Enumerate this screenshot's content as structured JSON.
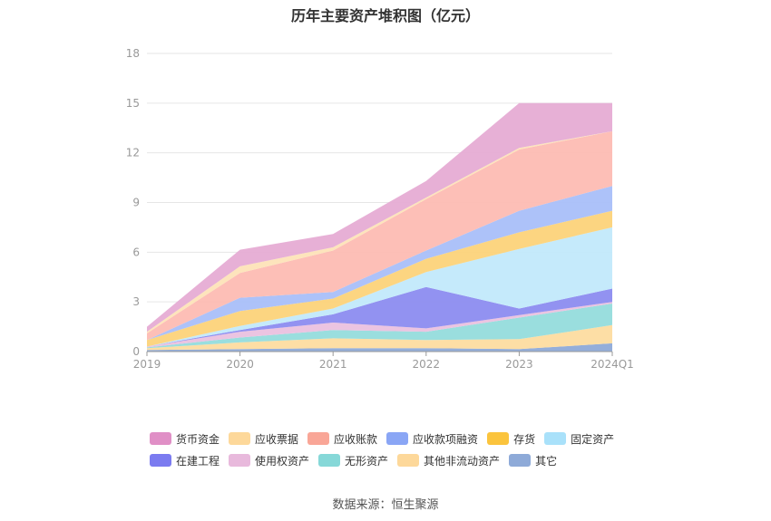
{
  "chart_data": {
    "type": "area",
    "stacked": true,
    "title": "历年主要资产堆积图（亿元）",
    "x": [
      "2019",
      "2020",
      "2021",
      "2022",
      "2023",
      "2024Q1"
    ],
    "ylim": [
      0,
      18
    ],
    "yticks": [
      0,
      3,
      6,
      9,
      12,
      15,
      18
    ],
    "grid": true,
    "legend_position": "bottom",
    "series": [
      {
        "name": "其它",
        "color": "#8eaad8",
        "values": [
          0.1,
          0.15,
          0.2,
          0.2,
          0.15,
          0.5
        ]
      },
      {
        "name": "其他非流动资产",
        "color": "#fddca0",
        "values": [
          0.1,
          0.4,
          0.6,
          0.5,
          0.6,
          1.1
        ]
      },
      {
        "name": "无形资产",
        "color": "#95dcdc",
        "values": [
          0.05,
          0.3,
          0.5,
          0.5,
          1.3,
          1.3
        ]
      },
      {
        "name": "使用权资产",
        "color": "#eac1df",
        "values": [
          0.05,
          0.35,
          0.45,
          0.2,
          0.15,
          0.1
        ]
      },
      {
        "name": "在建工程",
        "color": "#8c8cf0",
        "values": [
          0.0,
          0.1,
          0.5,
          2.5,
          0.4,
          0.8
        ]
      },
      {
        "name": "固定资产",
        "color": "#c2e9fb",
        "values": [
          0.0,
          0.25,
          0.35,
          0.9,
          3.6,
          3.7
        ]
      },
      {
        "name": "存货",
        "color": "#fcd37a",
        "values": [
          0.4,
          0.9,
          0.6,
          0.8,
          1.0,
          1.0
        ]
      },
      {
        "name": "应收款项融资",
        "color": "#a9bff9",
        "values": [
          0.0,
          0.8,
          0.4,
          0.5,
          1.3,
          1.5
        ]
      },
      {
        "name": "应收账款",
        "color": "#fdbcb3",
        "values": [
          0.4,
          1.5,
          2.5,
          3.1,
          3.7,
          3.3
        ]
      },
      {
        "name": "应收票据",
        "color": "#fde3b8",
        "values": [
          0.1,
          0.4,
          0.2,
          0.1,
          0.1,
          0.0
        ]
      },
      {
        "name": "货币资金",
        "color": "#e6acd4",
        "values": [
          0.3,
          1.0,
          0.8,
          1.0,
          2.7,
          1.7
        ]
      }
    ]
  },
  "legend": {
    "row1": [
      {
        "label": "货币资金",
        "color": "#e08fc6"
      },
      {
        "label": "应收票据",
        "color": "#fdd89a"
      },
      {
        "label": "应收账款",
        "color": "#f9a697"
      },
      {
        "label": "应收款项融资",
        "color": "#8aa6f5"
      },
      {
        "label": "存货",
        "color": "#fbc43d"
      },
      {
        "label": "固定资产",
        "color": "#a9e1fa"
      }
    ],
    "row2": [
      {
        "label": "在建工程",
        "color": "#7b7bf0"
      },
      {
        "label": "使用权资产",
        "color": "#e8b9dc"
      },
      {
        "label": "无形资产",
        "color": "#86d8d8"
      },
      {
        "label": "其他非流动资产",
        "color": "#fdd89a"
      },
      {
        "label": "其它",
        "color": "#8eaad8"
      }
    ]
  },
  "source": "数据来源：恒生聚源"
}
